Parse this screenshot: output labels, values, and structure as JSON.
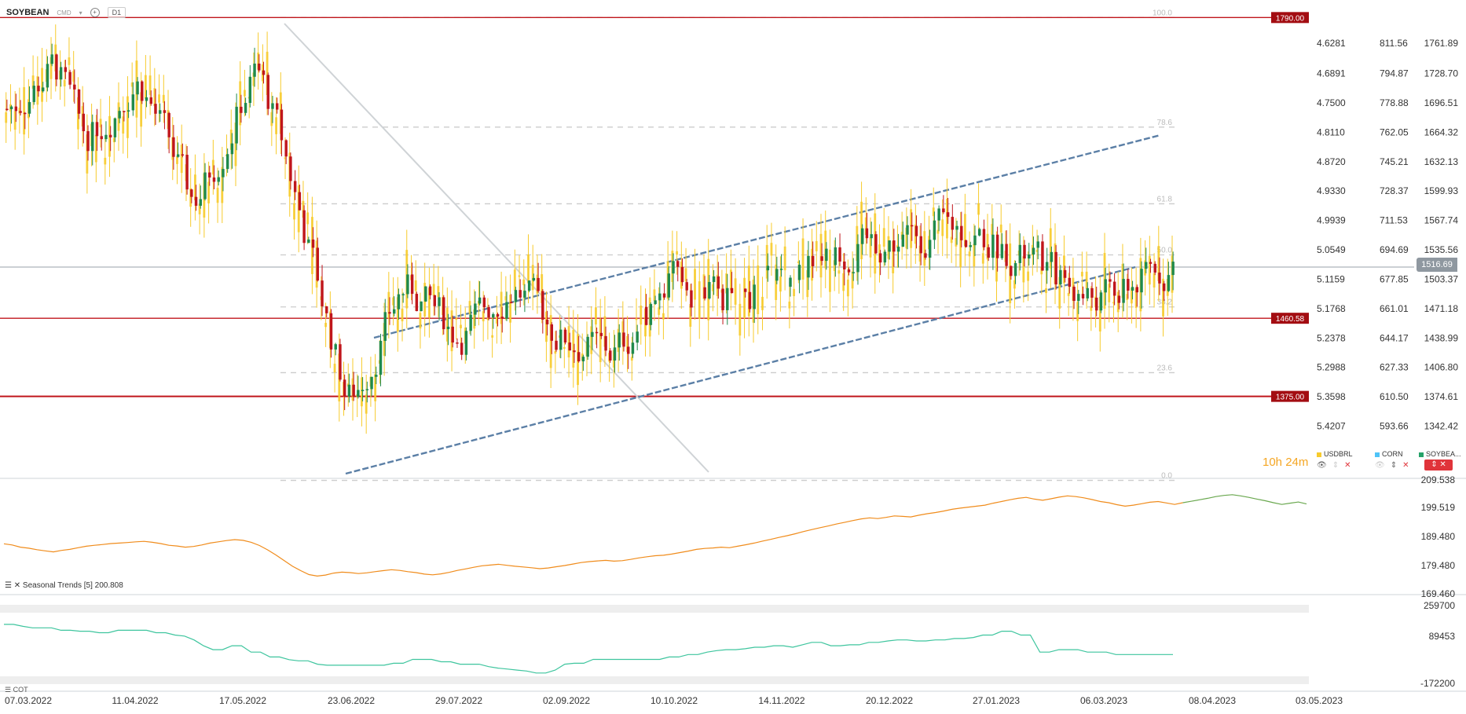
{
  "header": {
    "symbol": "SOYBEAN",
    "exchange": "CMD",
    "timeframe": "D1"
  },
  "timer": {
    "hours": "10h",
    "minutes": "24m"
  },
  "legend": [
    {
      "name": "USDBRL",
      "color": "#f7cb2d"
    },
    {
      "name": "CORN",
      "color": "#4fc3f7"
    },
    {
      "name": "SOYBEA...",
      "color": "#26a269"
    }
  ],
  "indicator_label": "Seasonal Trends [5] 200.808",
  "cot_label": "COT",
  "current_price": "1516.69",
  "chart_data": {
    "type": "candlestick",
    "x_labels": [
      "07.03.2022",
      "11.04.2022",
      "17.05.2022",
      "23.06.2022",
      "29.07.2022",
      "02.09.2022",
      "10.10.2022",
      "14.11.2022",
      "20.12.2022",
      "27.01.2023",
      "06.03.2023",
      "08.04.2023",
      "03.05.2023"
    ],
    "y_axis_soybean": [
      "1761.89",
      "1728.70",
      "1696.51",
      "1664.32",
      "1632.13",
      "1599.93",
      "1567.74",
      "1535.56",
      "1503.37",
      "1471.18",
      "1438.99",
      "1406.80",
      "1374.61",
      "1342.42"
    ],
    "y_axis_usdbrl": [
      "4.6281",
      "4.6891",
      "4.7500",
      "4.8110",
      "4.8720",
      "4.9330",
      "4.9939",
      "5.0549",
      "5.1159",
      "5.1768",
      "5.2378",
      "5.2988",
      "5.3598",
      "5.4207"
    ],
    "y_axis_corn": [
      "811.56",
      "794.87",
      "778.88",
      "762.05",
      "745.21",
      "728.37",
      "711.53",
      "694.69",
      "677.85",
      "661.01",
      "644.17",
      "627.33",
      "610.50",
      "593.66"
    ],
    "horizontal_levels": [
      {
        "label": "1790.00",
        "value": 1790
      },
      {
        "label": "1460.58",
        "value": 1460.58
      },
      {
        "label": "1375.00",
        "value": 1375
      }
    ],
    "fib_levels": [
      {
        "label": "100.0",
        "value": 1790
      },
      {
        "label": "78.6",
        "value": 1670
      },
      {
        "label": "61.8",
        "value": 1586
      },
      {
        "label": "50.0",
        "value": 1530
      },
      {
        "label": "38.2",
        "value": 1473
      },
      {
        "label": "23.6",
        "value": 1401
      },
      {
        "label": "0.0",
        "value": 1283
      }
    ],
    "seasonal_y_axis": [
      "209.538",
      "199.519",
      "189.480",
      "179.480",
      "169.460"
    ],
    "cot_y_axis": [
      "259700",
      "89453",
      "-172200"
    ],
    "seasonal_values": [
      187.8,
      187.3,
      186.4,
      186.0,
      185.4,
      184.9,
      184.5,
      185.1,
      185.5,
      186.2,
      186.8,
      187.2,
      187.5,
      187.9,
      188.1,
      188.3,
      188.6,
      188.8,
      188.4,
      187.9,
      187.2,
      186.9,
      186.4,
      186.7,
      187.3,
      188.1,
      188.6,
      189.1,
      189.5,
      189.2,
      188.4,
      187.1,
      185.3,
      183.2,
      180.9,
      178.6,
      176.8,
      175.2,
      174.6,
      175.0,
      175.8,
      176.2,
      176.0,
      175.6,
      175.9,
      176.4,
      176.8,
      177.2,
      176.9,
      176.4,
      176.0,
      175.4,
      175.1,
      175.5,
      176.1,
      176.9,
      177.5,
      178.2,
      178.8,
      179.1,
      179.4,
      179.0,
      178.6,
      178.3,
      178.0,
      177.6,
      177.9,
      178.4,
      178.9,
      179.5,
      180.1,
      180.5,
      180.8,
      181.0,
      180.7,
      180.9,
      181.4,
      182.0,
      182.5,
      182.9,
      183.1,
      183.6,
      184.2,
      184.8,
      185.5,
      185.9,
      186.1,
      186.4,
      186.2,
      186.8,
      187.4,
      188.1,
      188.9,
      189.6,
      190.4,
      191.1,
      191.9,
      192.8,
      193.6,
      194.4,
      195.1,
      195.9,
      196.6,
      197.3,
      198.0,
      198.4,
      198.1,
      198.6,
      199.2,
      199.0,
      198.8,
      199.5,
      200.1,
      200.6,
      201.2,
      201.9,
      202.4,
      202.8,
      203.2,
      203.6,
      204.4,
      205.1,
      205.8,
      206.4,
      206.8,
      206.1,
      205.6,
      206.2,
      206.9,
      207.4,
      207.1,
      206.6,
      205.9,
      205.1,
      204.6,
      203.8,
      203.2,
      203.6,
      204.2,
      204.8,
      205.1,
      204.5,
      203.9,
      204.6,
      205.2,
      205.8,
      206.4,
      207.1,
      207.6,
      207.9,
      207.4,
      206.8,
      206.1,
      205.4,
      204.6,
      203.9,
      204.4,
      204.9,
      204.1
    ],
    "cot_values": [
      162000,
      162000,
      158000,
      155000,
      155000,
      155000,
      150000,
      150000,
      148000,
      148000,
      145000,
      145000,
      150000,
      150000,
      150000,
      150000,
      145000,
      145000,
      140000,
      138000,
      130000,
      118000,
      110000,
      110000,
      118000,
      118000,
      105000,
      105000,
      95000,
      95000,
      89453,
      87000,
      87000,
      80000,
      78000,
      78000,
      78000,
      78000,
      78000,
      78000,
      78000,
      82000,
      82000,
      90000,
      90000,
      90000,
      85000,
      85000,
      80000,
      80000,
      80000,
      75000,
      72000,
      70000,
      68000,
      66000,
      62000,
      62000,
      68000,
      80000,
      82000,
      82000,
      90000,
      90000,
      90000,
      90000,
      90000,
      90000,
      90000,
      90000,
      95000,
      95000,
      100000,
      100000,
      105000,
      108000,
      110000,
      110000,
      112000,
      115000,
      115000,
      118000,
      118000,
      115000,
      120000,
      125000,
      125000,
      118000,
      118000,
      120000,
      120000,
      125000,
      125000,
      128000,
      130000,
      130000,
      128000,
      128000,
      130000,
      130000,
      133000,
      133000,
      135000,
      140000,
      140000,
      148000,
      148000,
      140000,
      140000,
      105000,
      105000,
      110000,
      110000,
      110000,
      105000,
      105000,
      105000,
      100000,
      100000,
      100000,
      100000,
      100000,
      100000,
      100000
    ]
  }
}
